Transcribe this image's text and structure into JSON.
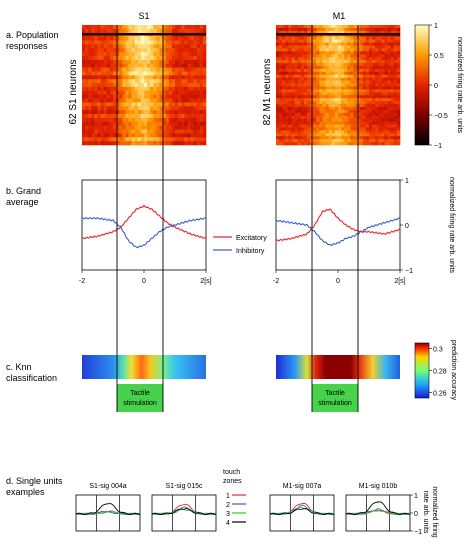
{
  "section_labels": {
    "a": "a. Population\nresponses",
    "b": "b. Grand\naverage",
    "c": "c. Knn\nclassification",
    "d": "d. Single units\nexamples"
  },
  "panels": {
    "left_title": "S1",
    "right_title": "M1",
    "left_neurons": "62 S1 neurons",
    "right_neurons": "82 M1 neurons"
  },
  "colorbar_a": {
    "label": "normalized firing rate arb. units",
    "ticks": [
      "1",
      "0.5",
      "0",
      "−0.5",
      "−1"
    ]
  },
  "colorbar_c": {
    "label": "prediction accuracy",
    "ticks": [
      "0.3",
      "0.28",
      "0.26"
    ]
  },
  "grand_average_axis": {
    "label": "normalized firing rate arb. units",
    "ticks": [
      "1",
      "0",
      "−1"
    ],
    "xticks": [
      "-2",
      "0",
      "2[s]"
    ]
  },
  "legend_b": {
    "excitatory": "Excitatory",
    "inhibitory": "Inhibitory"
  },
  "tactile": "Tactile\nstimulation",
  "single_units": {
    "titles": [
      "S1-sig 004a",
      "S1-sig 015c",
      "M1-sig 007a",
      "M1-sig 010b"
    ],
    "legend_title": "touch\nzones",
    "zones": [
      "1",
      "2",
      "3",
      "4"
    ],
    "axis_label": "normalized firing\nrate arb. units",
    "ticks": [
      "1",
      "0",
      "−1"
    ]
  },
  "colors": {
    "excitatory": "#e8262b",
    "inhibitory": "#3a5fcd",
    "zone1": "#e8262b",
    "zone2": "#3a5fcd",
    "zone3": "#2ecc2e",
    "zone4": "#000000",
    "stim_box": "#46d24a"
  },
  "chart_data": [
    {
      "type": "heatmap",
      "title": "S1",
      "ylabel": "62 S1 neurons",
      "x_range_s": [
        -2,
        2
      ],
      "value_range": [
        -1,
        1
      ],
      "description_profile": {
        "x": [
          -2,
          -1,
          -0.5,
          0,
          0.5,
          1,
          2
        ],
        "mean_value": [
          0.05,
          0.1,
          0.7,
          0.95,
          0.6,
          0.05,
          0.05
        ]
      }
    },
    {
      "type": "heatmap",
      "title": "M1",
      "ylabel": "82 M1 neurons",
      "x_range_s": [
        -2,
        2
      ],
      "value_range": [
        -1,
        1
      ],
      "description_profile": {
        "x": [
          -2,
          -1,
          -0.5,
          0,
          0.5,
          1,
          2
        ],
        "mean_value": [
          0.0,
          0.1,
          0.6,
          0.8,
          0.4,
          0.05,
          0.0
        ]
      }
    },
    {
      "type": "line",
      "title": "S1 grand average",
      "x": [
        -2,
        -1.5,
        -1,
        -0.75,
        -0.5,
        -0.25,
        0,
        0.25,
        0.5,
        0.75,
        1,
        1.5,
        2
      ],
      "series": [
        {
          "name": "Excitatory",
          "values": [
            -0.3,
            -0.25,
            -0.15,
            -0.05,
            0.15,
            0.35,
            0.42,
            0.35,
            0.2,
            0.05,
            -0.05,
            -0.2,
            -0.3
          ]
        },
        {
          "name": "Inhibitory",
          "values": [
            0.15,
            0.15,
            0.1,
            -0.05,
            -0.35,
            -0.5,
            -0.45,
            -0.3,
            -0.15,
            -0.05,
            0.0,
            0.1,
            0.15
          ]
        }
      ],
      "ylim": [
        -1,
        1
      ]
    },
    {
      "type": "line",
      "title": "M1 grand average",
      "x": [
        -2,
        -1.5,
        -1,
        -0.75,
        -0.5,
        -0.25,
        0,
        0.25,
        0.5,
        0.75,
        1,
        1.5,
        2
      ],
      "series": [
        {
          "name": "Excitatory",
          "values": [
            -0.35,
            -0.3,
            -0.2,
            0.0,
            0.3,
            0.35,
            0.15,
            0.0,
            -0.1,
            -0.15,
            -0.15,
            -0.2,
            -0.1
          ]
        },
        {
          "name": "Inhibitory",
          "values": [
            0.1,
            0.05,
            0.0,
            -0.15,
            -0.35,
            -0.45,
            -0.4,
            -0.3,
            -0.25,
            -0.15,
            -0.05,
            0.05,
            0.15
          ]
        }
      ],
      "ylim": [
        -1,
        1
      ]
    },
    {
      "type": "heatmap",
      "title": "S1 Knn classification",
      "x_range_s": [
        -2,
        2
      ],
      "value_range": [
        0.26,
        0.3
      ],
      "profile": {
        "x": [
          -2,
          -1,
          -0.5,
          0,
          0.5,
          1,
          2
        ],
        "accuracy": [
          0.255,
          0.262,
          0.285,
          0.29,
          0.28,
          0.265,
          0.258
        ]
      }
    },
    {
      "type": "heatmap",
      "title": "M1 Knn classification",
      "x_range_s": [
        -2,
        2
      ],
      "value_range": [
        0.26,
        0.3
      ],
      "profile": {
        "x": [
          -2,
          -1,
          -0.75,
          0,
          0.5,
          1,
          2
        ],
        "accuracy": [
          0.255,
          0.265,
          0.3,
          0.305,
          0.3,
          0.27,
          0.258
        ]
      }
    }
  ]
}
